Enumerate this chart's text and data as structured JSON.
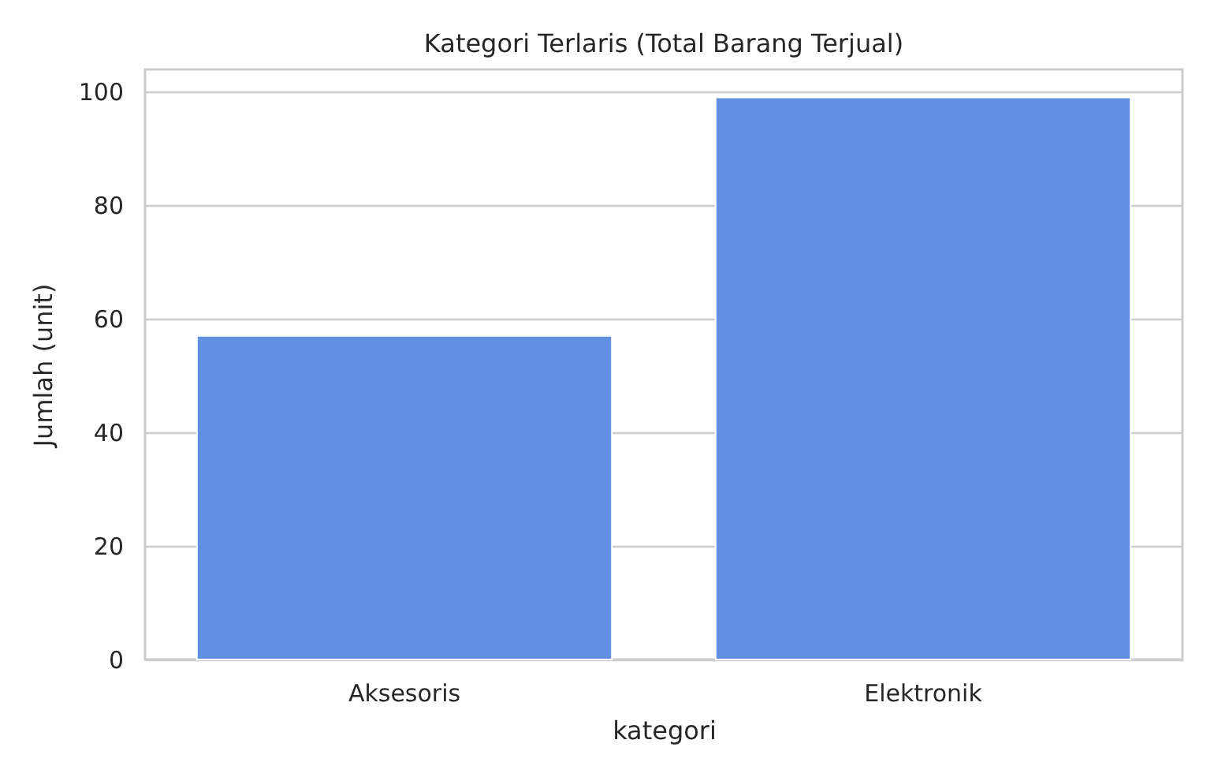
{
  "chart_data": {
    "type": "bar",
    "title": "Kategori Terlaris (Total Barang Terjual)",
    "xlabel": "kategori",
    "ylabel": "Jumlah (unit)",
    "categories": [
      "Aksesoris",
      "Elektronik"
    ],
    "values": [
      57,
      99
    ],
    "color": "#6190e0",
    "ylim": [
      0,
      103.95
    ],
    "yticks": [
      0,
      20,
      40,
      60,
      80,
      100
    ],
    "grid": "y"
  }
}
